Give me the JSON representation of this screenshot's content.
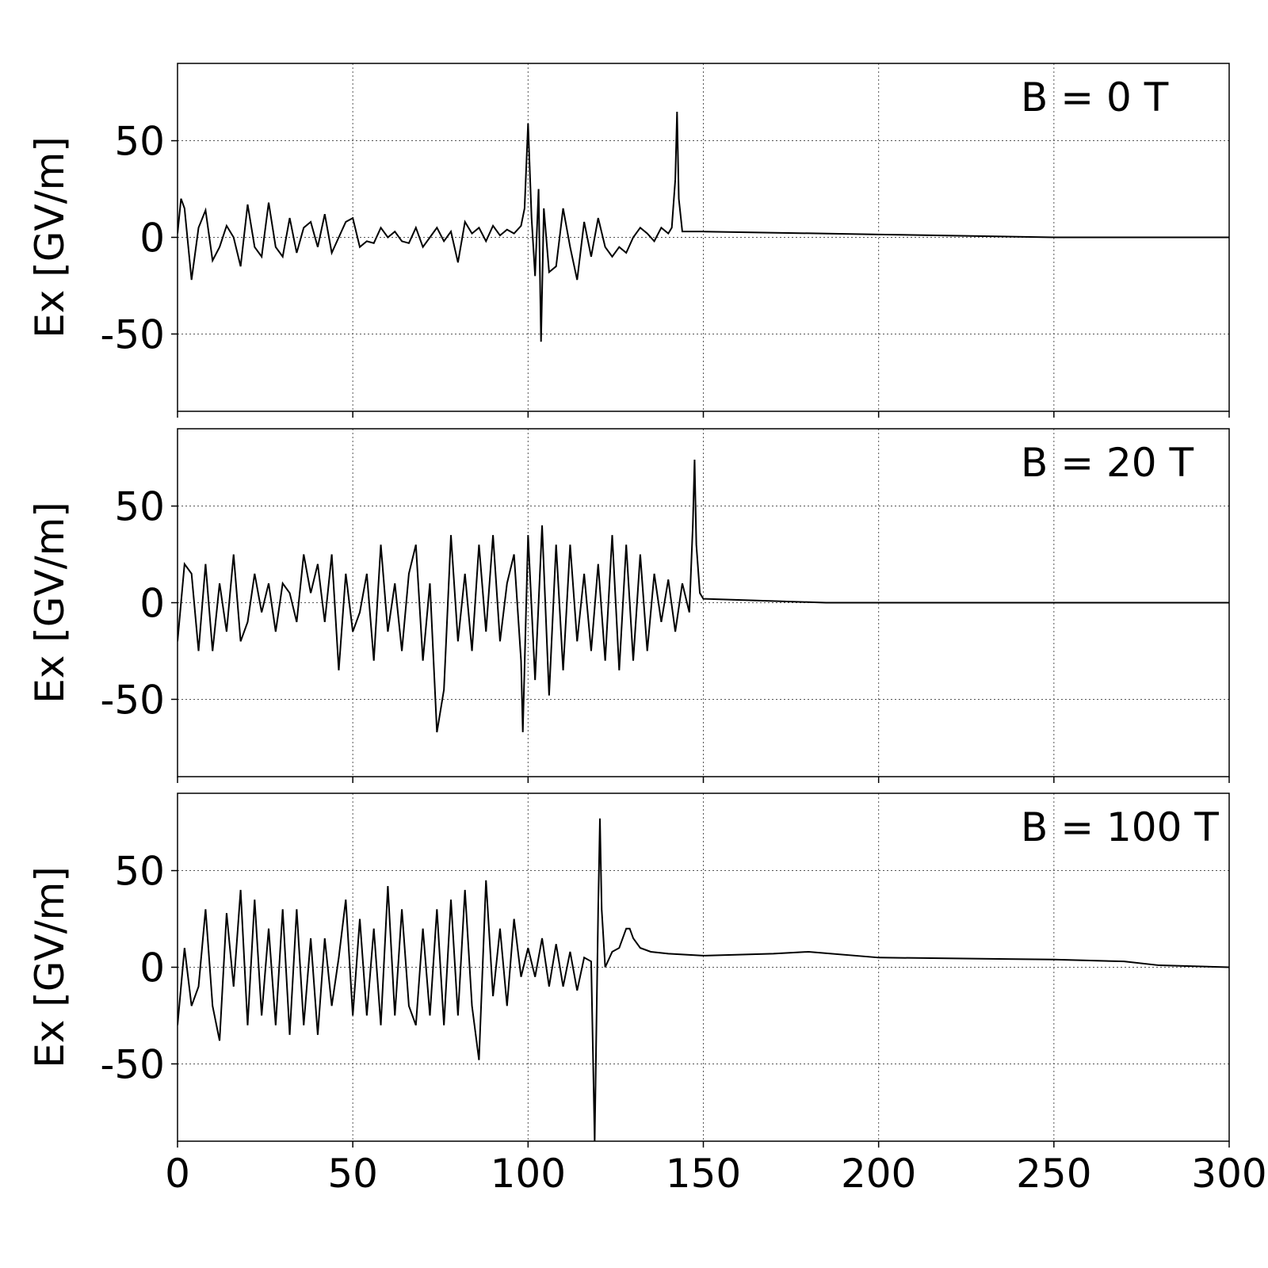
{
  "chart_data": [
    {
      "type": "line",
      "annotation": "B = 0 T",
      "ylabel": "Ex [GV/m]",
      "xlim": [
        0,
        300
      ],
      "xticks": [
        0,
        50,
        100,
        150,
        200,
        250,
        300
      ],
      "ylim": [
        -90,
        90
      ],
      "yticks": [
        -50,
        0,
        50
      ],
      "grid": true,
      "color": "#000000",
      "x": [
        0,
        1,
        2,
        4,
        6,
        8,
        10,
        12,
        14,
        16,
        18,
        20,
        22,
        24,
        26,
        28,
        30,
        32,
        34,
        36,
        38,
        40,
        42,
        44,
        46,
        48,
        50,
        52,
        54,
        56,
        58,
        60,
        62,
        64,
        66,
        68,
        70,
        72,
        74,
        76,
        78,
        80,
        82,
        84,
        86,
        88,
        90,
        92,
        94,
        96,
        98,
        99,
        100,
        101,
        102,
        103,
        103.7,
        104.5,
        106,
        108,
        110,
        112,
        114,
        116,
        118,
        120,
        122,
        124,
        126,
        128,
        130,
        132,
        134,
        136,
        138,
        140,
        141,
        142,
        142.5,
        143,
        144,
        150,
        200,
        250,
        300
      ],
      "values": [
        2,
        20,
        15,
        -22,
        5,
        14,
        -12,
        -5,
        6,
        0,
        -15,
        17,
        -5,
        -10,
        18,
        -5,
        -10,
        10,
        -8,
        5,
        8,
        -5,
        12,
        -8,
        0,
        8,
        10,
        -5,
        -2,
        -3,
        5,
        0,
        3,
        -2,
        -3,
        5,
        -5,
        0,
        5,
        -2,
        3,
        -13,
        8,
        2,
        5,
        -2,
        6,
        1,
        4,
        2,
        6,
        15,
        59,
        10,
        -20,
        25,
        -54,
        15,
        -18,
        -15,
        15,
        -5,
        -22,
        8,
        -10,
        10,
        -5,
        -10,
        -5,
        -8,
        0,
        5,
        2,
        -2,
        5,
        2,
        5,
        30,
        65,
        20,
        3,
        3,
        1.5,
        0,
        0
      ]
    },
    {
      "type": "line",
      "annotation": "B = 20 T",
      "ylabel": "Ex [GV/m]",
      "xlim": [
        0,
        300
      ],
      "xticks": [
        0,
        50,
        100,
        150,
        200,
        250,
        300
      ],
      "ylim": [
        -90,
        90
      ],
      "yticks": [
        -50,
        0,
        50
      ],
      "grid": true,
      "color": "#000000",
      "x": [
        0,
        2,
        4,
        6,
        8,
        10,
        12,
        14,
        16,
        18,
        20,
        22,
        24,
        26,
        28,
        30,
        32,
        34,
        36,
        38,
        40,
        42,
        44,
        46,
        48,
        50,
        52,
        54,
        56,
        58,
        60,
        62,
        64,
        66,
        68,
        70,
        72,
        74,
        76,
        78,
        80,
        82,
        84,
        86,
        88,
        90,
        92,
        94,
        96,
        98,
        98.5,
        100,
        102,
        104,
        106,
        108,
        110,
        112,
        114,
        116,
        118,
        120,
        122,
        124,
        126,
        128,
        130,
        132,
        134,
        136,
        138,
        140,
        142,
        144,
        146,
        147,
        147.5,
        148,
        149,
        150,
        185,
        300
      ],
      "values": [
        -20,
        20,
        15,
        -25,
        20,
        -25,
        10,
        -15,
        25,
        -20,
        -10,
        15,
        -5,
        10,
        -15,
        10,
        5,
        -10,
        25,
        5,
        20,
        -10,
        25,
        -35,
        15,
        -15,
        -5,
        15,
        -30,
        30,
        -15,
        10,
        -25,
        15,
        30,
        -30,
        10,
        -67,
        -45,
        35,
        -20,
        15,
        -25,
        30,
        -15,
        35,
        -20,
        10,
        25,
        -30,
        -67,
        35,
        -40,
        40,
        -48,
        30,
        -35,
        30,
        -20,
        15,
        -25,
        20,
        -30,
        35,
        -35,
        30,
        -30,
        25,
        -25,
        15,
        -10,
        12,
        -15,
        10,
        -5,
        40,
        74,
        30,
        5,
        2,
        0,
        0
      ]
    },
    {
      "type": "line",
      "annotation": "B = 100 T",
      "ylabel": "Ex [GV/m]",
      "xlim": [
        0,
        300
      ],
      "xticks": [
        0,
        50,
        100,
        150,
        200,
        250,
        300
      ],
      "ylim": [
        -90,
        90
      ],
      "yticks": [
        -50,
        0,
        50
      ],
      "grid": true,
      "color": "#000000",
      "x": [
        0,
        2,
        4,
        6,
        8,
        10,
        12,
        14,
        16,
        18,
        20,
        22,
        24,
        26,
        28,
        30,
        32,
        34,
        36,
        38,
        40,
        42,
        44,
        46,
        48,
        50,
        52,
        54,
        56,
        58,
        60,
        62,
        64,
        66,
        68,
        70,
        72,
        74,
        76,
        78,
        80,
        82,
        84,
        86,
        88,
        90,
        92,
        94,
        96,
        98,
        100,
        102,
        104,
        106,
        108,
        110,
        112,
        114,
        116,
        118,
        119,
        120,
        120.5,
        121,
        122,
        124,
        126,
        128,
        129,
        130,
        132,
        135,
        140,
        150,
        170,
        180,
        200,
        250,
        270,
        280,
        300
      ],
      "values": [
        -30,
        10,
        -20,
        -10,
        30,
        -20,
        -38,
        28,
        -10,
        40,
        -30,
        35,
        -25,
        20,
        -30,
        30,
        -35,
        30,
        -30,
        15,
        -35,
        15,
        -20,
        5,
        35,
        -25,
        25,
        -25,
        20,
        -30,
        42,
        -25,
        30,
        -20,
        -30,
        20,
        -25,
        30,
        -30,
        35,
        -25,
        40,
        -20,
        -48,
        45,
        -15,
        20,
        -20,
        25,
        -5,
        10,
        -5,
        15,
        -10,
        12,
        -10,
        8,
        -12,
        5,
        3,
        -90,
        30,
        77,
        30,
        0,
        8,
        10,
        20,
        20,
        15,
        10,
        8,
        7,
        6,
        7,
        8,
        5,
        4,
        3,
        1,
        0
      ]
    }
  ]
}
